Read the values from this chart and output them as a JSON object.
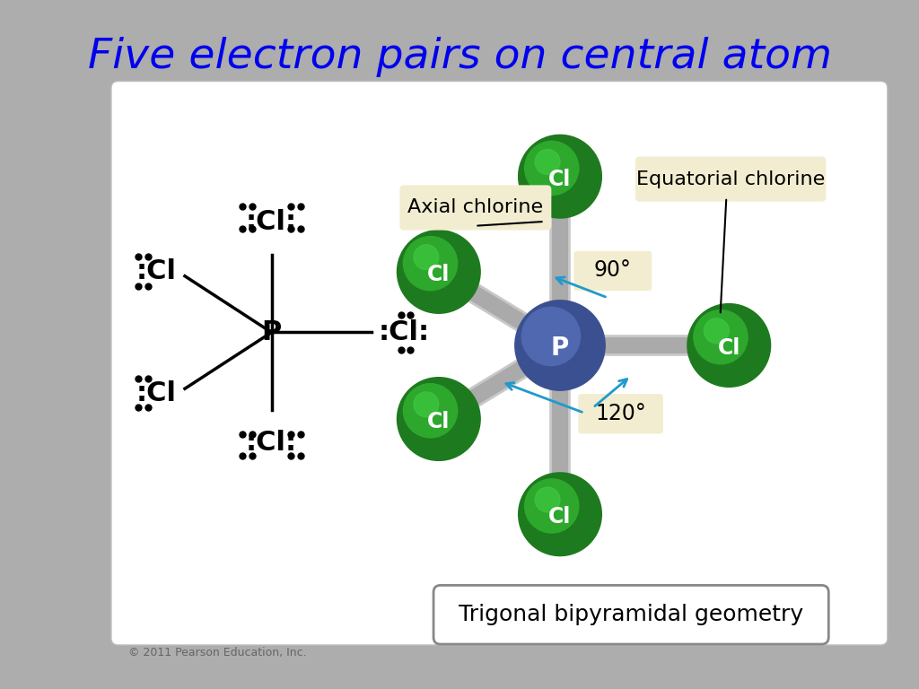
{
  "title": "Five electron pairs on central atom",
  "title_color": "#0000EE",
  "title_fontsize": 34,
  "bg_color": "#ADADAD",
  "panel_bg": "#FFFFFF",
  "label_box_color": "#F2EDD0",
  "p_color_dark": "#3B5090",
  "p_color_mid": "#4F68B0",
  "cl_color_dark": "#1E7A1E",
  "cl_color_mid": "#2DA82D",
  "cl_color_light": "#3FC83F",
  "bond_color": "#AAAAAA",
  "bond_color2": "#C8C8C8",
  "arrow_color": "#2299CC",
  "geometry_text": "Trigonal bipyramidal geometry",
  "axial_label": "Axial chlorine",
  "equatorial_label": "Equatorial chlorine",
  "angle_90": "90°",
  "angle_120": "120°",
  "copyright": "© 2011 Pearson Education, Inc."
}
